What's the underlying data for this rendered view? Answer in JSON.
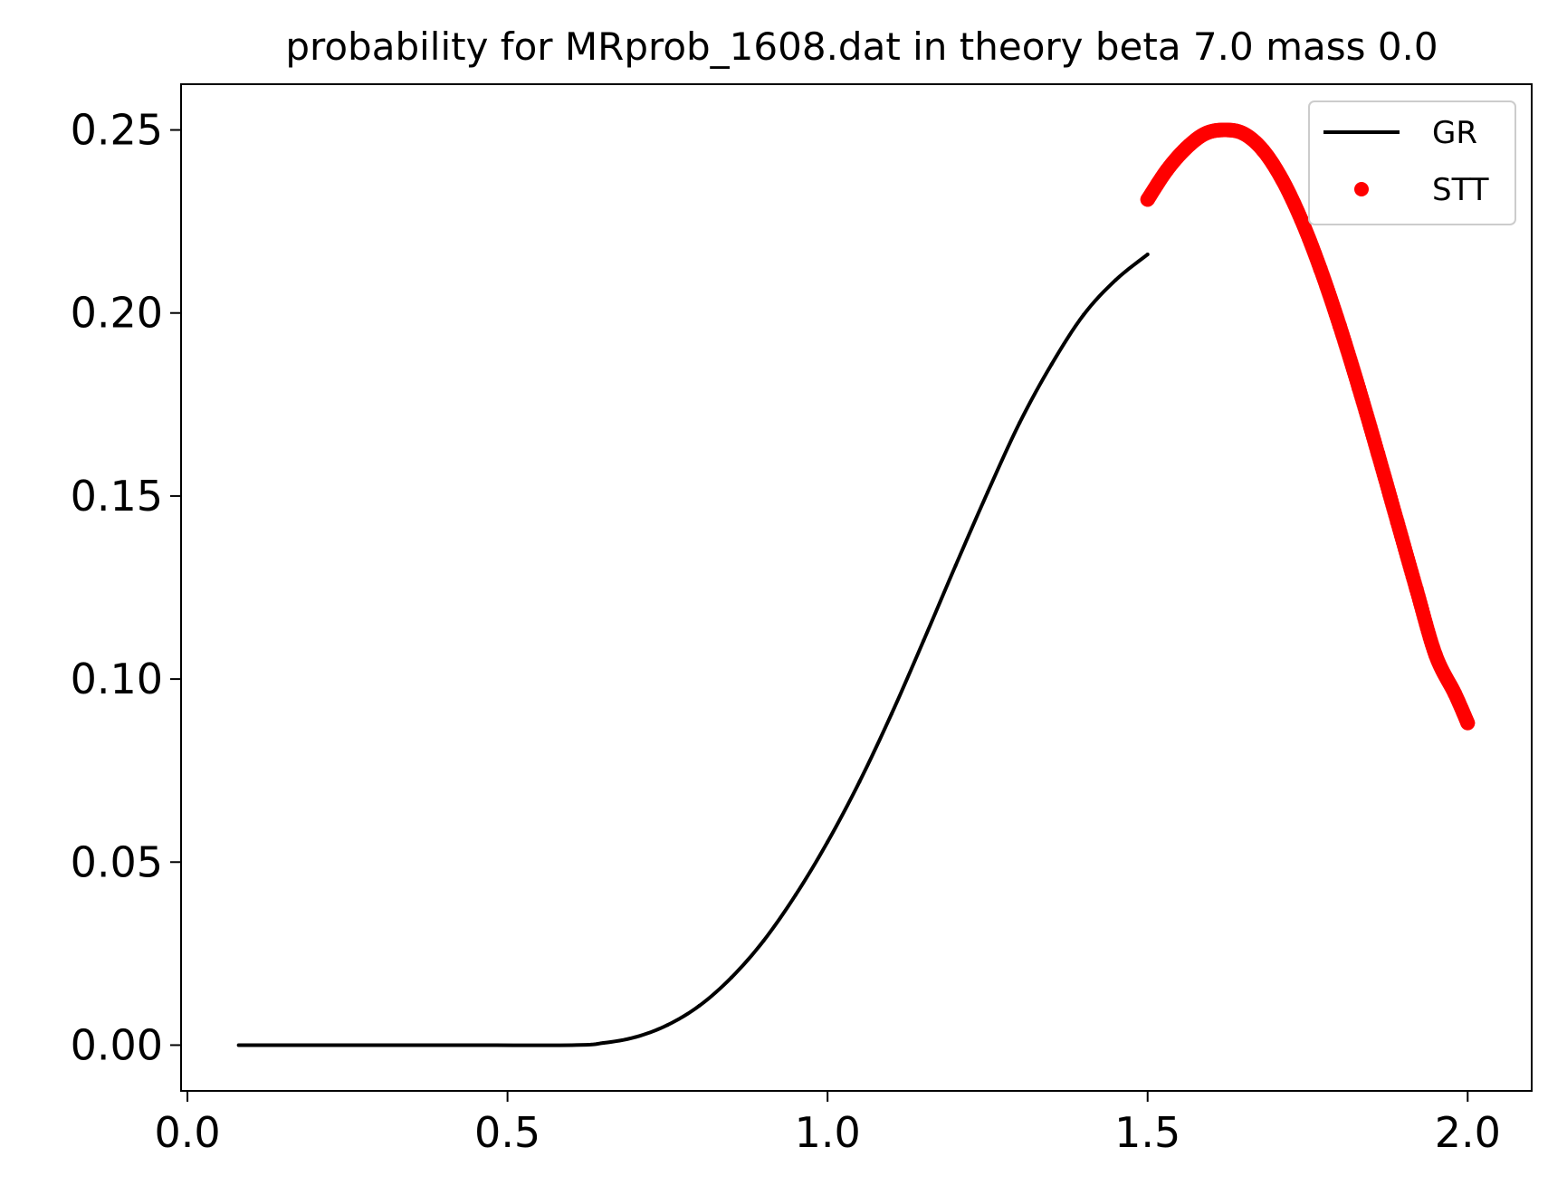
{
  "chart_data": {
    "type": "line",
    "title": "probability for MRprob_1608.dat in theory beta 7.0 mass 0.0",
    "xlabel": "",
    "ylabel": "",
    "xlim": [
      -0.01,
      2.1
    ],
    "ylim": [
      -0.0125,
      0.2625
    ],
    "x_ticks": [
      0.0,
      0.5,
      1.0,
      1.5,
      2.0
    ],
    "x_tick_labels": [
      "0.0",
      "0.5",
      "1.0",
      "1.5",
      "2.0"
    ],
    "y_ticks": [
      0.0,
      0.05,
      0.1,
      0.15,
      0.2,
      0.25
    ],
    "y_tick_labels": [
      "0.00",
      "0.05",
      "0.10",
      "0.15",
      "0.20",
      "0.25"
    ],
    "grid": false,
    "legend_position": "top-right",
    "series": [
      {
        "name": "GR",
        "style": "line",
        "color": "#000000",
        "x": [
          0.08,
          0.2,
          0.4,
          0.6,
          0.65,
          0.7,
          0.75,
          0.8,
          0.85,
          0.9,
          0.95,
          1.0,
          1.05,
          1.1,
          1.15,
          1.2,
          1.25,
          1.3,
          1.35,
          1.4,
          1.45,
          1.5
        ],
        "y": [
          0.0,
          0.0,
          0.0,
          0.0,
          0.0006,
          0.0022,
          0.0055,
          0.0108,
          0.0185,
          0.0285,
          0.041,
          0.0555,
          0.072,
          0.0905,
          0.1105,
          0.131,
          0.151,
          0.17,
          0.186,
          0.1995,
          0.209,
          0.216
        ]
      },
      {
        "name": "STT",
        "style": "points",
        "color": "#ff0000",
        "x": [
          1.5,
          1.53,
          1.56,
          1.59,
          1.62,
          1.65,
          1.68,
          1.71,
          1.74,
          1.77,
          1.8,
          1.83,
          1.86,
          1.89,
          1.92,
          1.95,
          1.98,
          2.0
        ],
        "y": [
          0.231,
          0.239,
          0.245,
          0.249,
          0.25,
          0.249,
          0.2445,
          0.2365,
          0.2255,
          0.212,
          0.1965,
          0.1795,
          0.1615,
          0.143,
          0.1245,
          0.1065,
          0.096,
          0.088
        ]
      }
    ]
  }
}
